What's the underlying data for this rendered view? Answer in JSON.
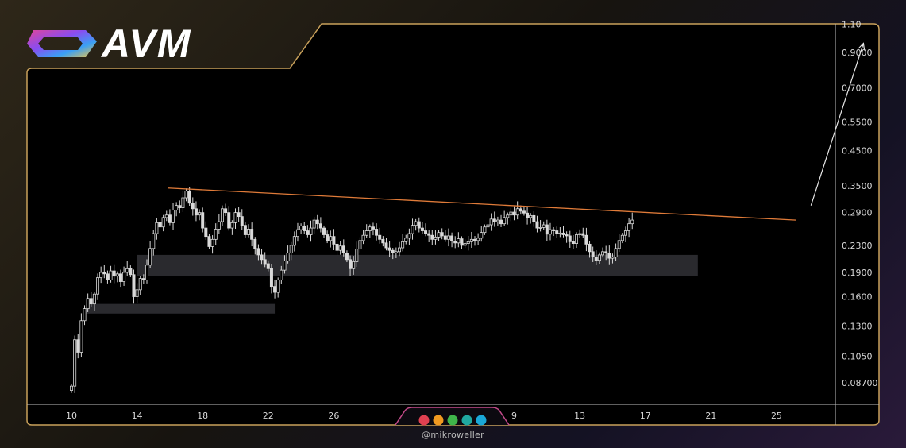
{
  "brand": {
    "logo_text": "AVM",
    "colors": [
      "#e0469b",
      "#8a4cf0",
      "#3aa0f5",
      "#f5c542"
    ]
  },
  "watermark": "@mikroweller",
  "dots": [
    "#e04050",
    "#f09a20",
    "#3fb54a",
    "#20a8a0",
    "#1aa8d8"
  ],
  "colors": {
    "background": "#000000",
    "frame": "#c9a15b",
    "trendline": "#e07b39",
    "zone": "#2a2a2e",
    "candle": "#d9d9d9",
    "arrow": "#e8e8e8"
  },
  "chart_data": {
    "type": "candlestick",
    "scale": "log",
    "y_ticks": [
      "1.10",
      "0.9000",
      "0.7000",
      "0.5500",
      "0.4500",
      "0.3500",
      "0.2900",
      "0.2300",
      "0.1900",
      "0.1600",
      "0.1300",
      "0.1050",
      "0.08700"
    ],
    "x_ticks": [
      "10",
      "14",
      "18",
      "22",
      "26",
      "",
      "9",
      "13",
      "17",
      "21",
      "25"
    ],
    "trendline": {
      "from": {
        "x": 15.9,
        "y": 0.345
      },
      "to": {
        "x": 54.2,
        "y": 0.275
      }
    },
    "projection_arrow": {
      "from": {
        "x": 55.1,
        "y": 0.305
      },
      "to": {
        "x": 58.3,
        "y": 0.96
      }
    },
    "zones": [
      {
        "x0": 14.0,
        "x1": 48.2,
        "y_low": 0.185,
        "y_high": 0.215
      },
      {
        "x0": 10.9,
        "x1": 22.4,
        "y_low": 0.142,
        "y_high": 0.152
      }
    ],
    "closes": [
      0.085,
      0.118,
      0.108,
      0.135,
      0.147,
      0.158,
      0.152,
      0.163,
      0.183,
      0.19,
      0.188,
      0.18,
      0.192,
      0.185,
      0.188,
      0.178,
      0.19,
      0.195,
      0.187,
      0.16,
      0.168,
      0.182,
      0.18,
      0.2,
      0.225,
      0.25,
      0.27,
      0.262,
      0.28,
      0.285,
      0.27,
      0.295,
      0.305,
      0.3,
      0.322,
      0.338,
      0.31,
      0.298,
      0.285,
      0.29,
      0.26,
      0.245,
      0.228,
      0.24,
      0.258,
      0.272,
      0.298,
      0.29,
      0.26,
      0.27,
      0.29,
      0.282,
      0.265,
      0.248,
      0.258,
      0.24,
      0.225,
      0.215,
      0.208,
      0.202,
      0.195,
      0.172,
      0.165,
      0.18,
      0.193,
      0.206,
      0.218,
      0.23,
      0.245,
      0.257,
      0.264,
      0.255,
      0.248,
      0.26,
      0.275,
      0.268,
      0.26,
      0.248,
      0.238,
      0.245,
      0.232,
      0.222,
      0.229,
      0.218,
      0.208,
      0.195,
      0.205,
      0.224,
      0.238,
      0.247,
      0.255,
      0.262,
      0.258,
      0.247,
      0.24,
      0.234,
      0.226,
      0.222,
      0.218,
      0.22,
      0.226,
      0.236,
      0.242,
      0.25,
      0.265,
      0.272,
      0.26,
      0.255,
      0.25,
      0.247,
      0.24,
      0.244,
      0.252,
      0.246,
      0.24,
      0.246,
      0.237,
      0.234,
      0.241,
      0.23,
      0.233,
      0.236,
      0.24,
      0.238,
      0.242,
      0.252,
      0.262,
      0.266,
      0.277,
      0.272,
      0.275,
      0.268,
      0.28,
      0.285,
      0.291,
      0.285,
      0.298,
      0.293,
      0.289,
      0.28,
      0.284,
      0.272,
      0.26,
      0.261,
      0.266,
      0.249,
      0.257,
      0.255,
      0.25,
      0.251,
      0.248,
      0.246,
      0.236,
      0.233,
      0.248,
      0.25,
      0.247,
      0.232,
      0.22,
      0.212,
      0.207,
      0.215,
      0.22,
      0.218,
      0.21,
      0.212,
      0.225,
      0.238,
      0.247,
      0.255,
      0.268,
      0.275
    ]
  }
}
